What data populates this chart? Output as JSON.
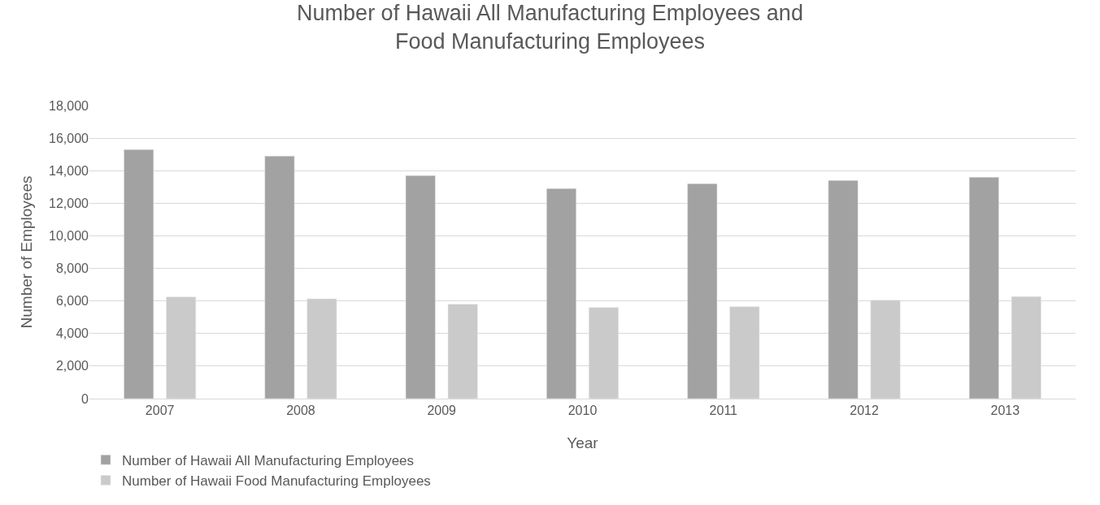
{
  "chart_data": {
    "type": "bar",
    "title": "Number of Hawaii All Manufacturing Employees and\nFood Manufacturing Employees",
    "xlabel": "Year",
    "ylabel": "Number of Employees",
    "categories": [
      "2007",
      "2008",
      "2009",
      "2010",
      "2011",
      "2012",
      "2013"
    ],
    "series": [
      {
        "name": "Number of Hawaii All Manufacturing Employees",
        "color": "#a2a2a2",
        "values": [
          15300,
          14900,
          13700,
          12900,
          13200,
          13400,
          13600
        ]
      },
      {
        "name": "Number of Hawaii Food Manufacturing Employees",
        "color": "#cacaca",
        "values": [
          6250,
          6130,
          5800,
          5600,
          5650,
          6050,
          6270
        ]
      }
    ],
    "ylim": [
      0,
      18000
    ],
    "yticks": [
      {
        "value": 0,
        "label": "0"
      },
      {
        "value": 2000,
        "label": "2,000"
      },
      {
        "value": 4000,
        "label": "4,000"
      },
      {
        "value": 6000,
        "label": "6,000"
      },
      {
        "value": 8000,
        "label": "8,000"
      },
      {
        "value": 10000,
        "label": "10,000"
      },
      {
        "value": 12000,
        "label": "12,000"
      },
      {
        "value": 14000,
        "label": "14,000"
      },
      {
        "value": 16000,
        "label": "16,000"
      },
      {
        "value": 18000,
        "label": "18,000"
      }
    ],
    "grid": "y",
    "legend": "bottom"
  }
}
